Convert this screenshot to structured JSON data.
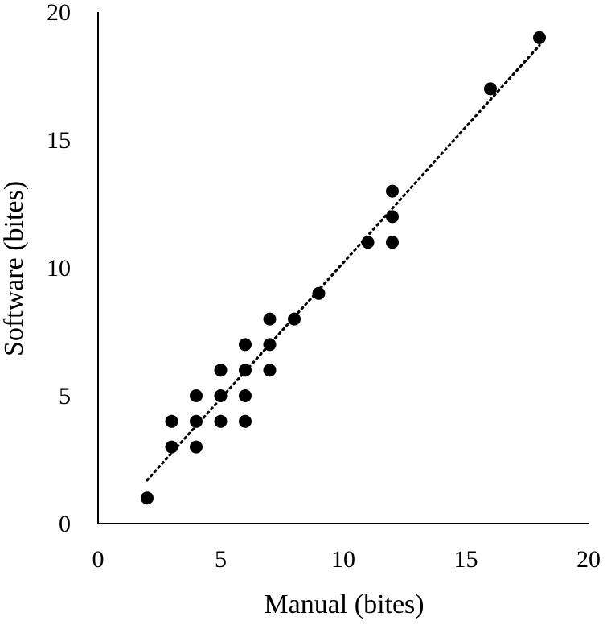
{
  "chart_data": {
    "type": "scatter",
    "title": "",
    "xlabel": "Manual (bites)",
    "ylabel": "Software (bites)",
    "xlim": [
      0,
      20
    ],
    "ylim": [
      0,
      20
    ],
    "x_ticks": [
      "0",
      "5",
      "10",
      "15",
      "20"
    ],
    "y_ticks": [
      "0",
      "5",
      "10",
      "15",
      "20"
    ],
    "grid": false,
    "legend": "none",
    "trendline": {
      "style": "dotted",
      "color": "#000000",
      "from": {
        "x": 2,
        "y": 1.7
      },
      "to": {
        "x": 18,
        "y": 18.7
      }
    },
    "series": [
      {
        "marker_color": "#000000",
        "points": [
          {
            "x": 2,
            "y": 1
          },
          {
            "x": 3,
            "y": 3
          },
          {
            "x": 3,
            "y": 4
          },
          {
            "x": 4,
            "y": 3
          },
          {
            "x": 4,
            "y": 4
          },
          {
            "x": 4,
            "y": 5
          },
          {
            "x": 5,
            "y": 4
          },
          {
            "x": 5,
            "y": 5
          },
          {
            "x": 5,
            "y": 6
          },
          {
            "x": 6,
            "y": 4
          },
          {
            "x": 6,
            "y": 5
          },
          {
            "x": 6,
            "y": 6
          },
          {
            "x": 6,
            "y": 7
          },
          {
            "x": 7,
            "y": 6
          },
          {
            "x": 7,
            "y": 7
          },
          {
            "x": 7,
            "y": 8
          },
          {
            "x": 8,
            "y": 8
          },
          {
            "x": 9,
            "y": 9
          },
          {
            "x": 11,
            "y": 11
          },
          {
            "x": 12,
            "y": 11
          },
          {
            "x": 12,
            "y": 12
          },
          {
            "x": 12,
            "y": 13
          },
          {
            "x": 16,
            "y": 17
          },
          {
            "x": 18,
            "y": 19
          }
        ]
      }
    ]
  }
}
